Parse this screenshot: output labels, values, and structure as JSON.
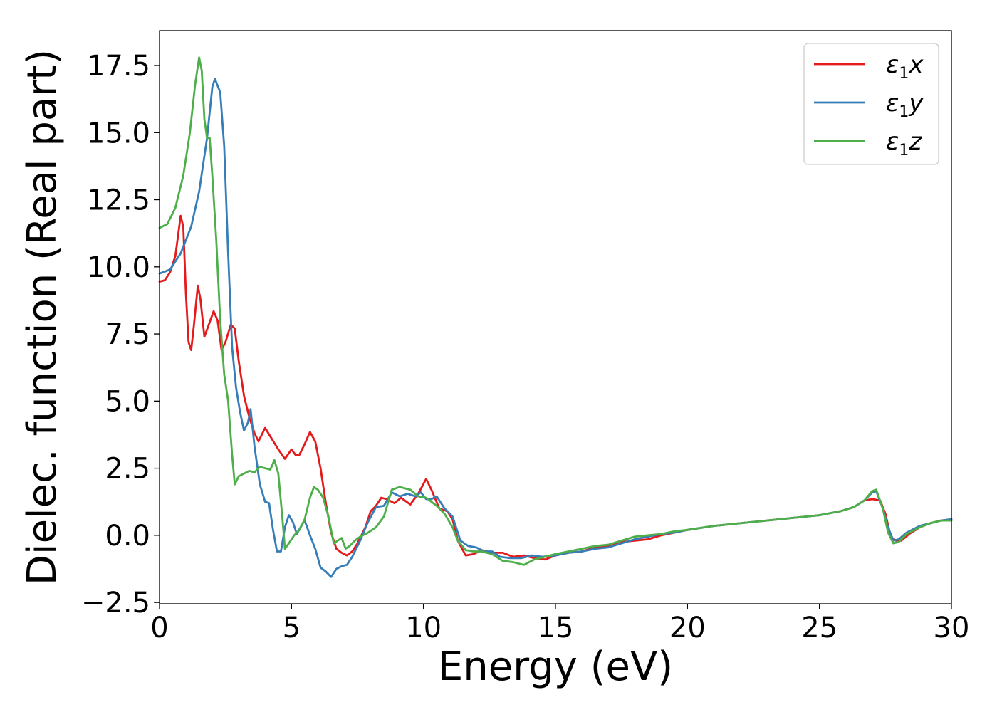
{
  "chart_data": {
    "type": "line",
    "xlabel": "Energy (eV)",
    "ylabel": "Dielec. function (Real part)",
    "xlim": [
      0,
      30
    ],
    "ylim": [
      -2.55,
      18.8
    ],
    "xticks": [
      0,
      5,
      10,
      15,
      20,
      25,
      30
    ],
    "xtick_labels": [
      "0",
      "5",
      "10",
      "15",
      "20",
      "25",
      "30"
    ],
    "yticks": [
      -2.5,
      0.0,
      2.5,
      5.0,
      7.5,
      10.0,
      12.5,
      15.0,
      17.5
    ],
    "ytick_labels": [
      "−2.5",
      "0.0",
      "2.5",
      "5.0",
      "7.5",
      "10.0",
      "12.5",
      "15.0",
      "17.5"
    ],
    "grid": false,
    "legend_position": "top-right",
    "series": [
      {
        "name": "ε₁x",
        "legend_base": "ε",
        "legend_sub": "1",
        "legend_tail": "x",
        "color": "#e41a1c",
        "points": [
          [
            0,
            9.45
          ],
          [
            0.2,
            9.5
          ],
          [
            0.4,
            9.8
          ],
          [
            0.6,
            10.4
          ],
          [
            0.8,
            11.9
          ],
          [
            0.9,
            11.5
          ],
          [
            1.0,
            9.0
          ],
          [
            1.1,
            7.2
          ],
          [
            1.2,
            6.9
          ],
          [
            1.3,
            7.8
          ],
          [
            1.45,
            9.3
          ],
          [
            1.55,
            8.8
          ],
          [
            1.7,
            7.4
          ],
          [
            1.85,
            7.8
          ],
          [
            2.05,
            8.35
          ],
          [
            2.2,
            8.0
          ],
          [
            2.35,
            6.9
          ],
          [
            2.5,
            7.2
          ],
          [
            2.7,
            7.85
          ],
          [
            2.85,
            7.7
          ],
          [
            3.0,
            6.5
          ],
          [
            3.2,
            5.2
          ],
          [
            3.4,
            4.4
          ],
          [
            3.6,
            3.8
          ],
          [
            3.75,
            3.5
          ],
          [
            4.0,
            4.0
          ],
          [
            4.25,
            3.6
          ],
          [
            4.5,
            3.2
          ],
          [
            4.75,
            2.85
          ],
          [
            5.0,
            3.2
          ],
          [
            5.15,
            3.0
          ],
          [
            5.3,
            3.0
          ],
          [
            5.5,
            3.4
          ],
          [
            5.7,
            3.85
          ],
          [
            5.9,
            3.5
          ],
          [
            6.1,
            2.5
          ],
          [
            6.3,
            1.2
          ],
          [
            6.5,
            0.1
          ],
          [
            6.7,
            -0.5
          ],
          [
            6.9,
            -0.65
          ],
          [
            7.1,
            -0.75
          ],
          [
            7.3,
            -0.6
          ],
          [
            7.5,
            -0.3
          ],
          [
            7.8,
            0.3
          ],
          [
            8.0,
            0.9
          ],
          [
            8.2,
            1.1
          ],
          [
            8.4,
            1.4
          ],
          [
            8.6,
            1.35
          ],
          [
            8.9,
            1.2
          ],
          [
            9.15,
            1.4
          ],
          [
            9.5,
            1.15
          ],
          [
            9.8,
            1.55
          ],
          [
            10.1,
            2.1
          ],
          [
            10.3,
            1.7
          ],
          [
            10.6,
            1.0
          ],
          [
            10.9,
            0.9
          ],
          [
            11.1,
            0.6
          ],
          [
            11.3,
            -0.2
          ],
          [
            11.6,
            -0.75
          ],
          [
            11.9,
            -0.7
          ],
          [
            12.2,
            -0.55
          ],
          [
            12.6,
            -0.65
          ],
          [
            13.0,
            -0.65
          ],
          [
            13.4,
            -0.8
          ],
          [
            13.8,
            -0.75
          ],
          [
            14.2,
            -0.85
          ],
          [
            14.6,
            -0.9
          ],
          [
            15.0,
            -0.75
          ],
          [
            15.5,
            -0.65
          ],
          [
            16.0,
            -0.6
          ],
          [
            16.5,
            -0.45
          ],
          [
            17.0,
            -0.4
          ],
          [
            17.5,
            -0.25
          ],
          [
            18.0,
            -0.2
          ],
          [
            18.5,
            -0.15
          ],
          [
            19.0,
            0.0
          ],
          [
            19.5,
            0.1
          ],
          [
            20.0,
            0.2
          ],
          [
            21.0,
            0.35
          ],
          [
            22.0,
            0.45
          ],
          [
            23.0,
            0.55
          ],
          [
            24.0,
            0.65
          ],
          [
            25.0,
            0.75
          ],
          [
            25.8,
            0.9
          ],
          [
            26.3,
            1.05
          ],
          [
            26.7,
            1.3
          ],
          [
            27.0,
            1.35
          ],
          [
            27.3,
            1.3
          ],
          [
            27.5,
            0.8
          ],
          [
            27.7,
            -0.05
          ],
          [
            27.9,
            -0.2
          ],
          [
            28.1,
            -0.2
          ],
          [
            28.4,
            0.05
          ],
          [
            28.8,
            0.3
          ],
          [
            29.2,
            0.45
          ],
          [
            29.6,
            0.55
          ],
          [
            30.0,
            0.6
          ]
        ]
      },
      {
        "name": "ε₁y",
        "legend_base": "ε",
        "legend_sub": "1",
        "legend_tail": "y",
        "color": "#377eb8",
        "points": [
          [
            0,
            9.75
          ],
          [
            0.4,
            9.9
          ],
          [
            0.8,
            10.5
          ],
          [
            1.2,
            11.5
          ],
          [
            1.5,
            12.8
          ],
          [
            1.8,
            14.8
          ],
          [
            2.0,
            16.7
          ],
          [
            2.1,
            17.0
          ],
          [
            2.3,
            16.5
          ],
          [
            2.45,
            14.5
          ],
          [
            2.6,
            10.5
          ],
          [
            2.75,
            7.0
          ],
          [
            2.9,
            5.5
          ],
          [
            3.05,
            4.6
          ],
          [
            3.2,
            3.9
          ],
          [
            3.35,
            4.2
          ],
          [
            3.45,
            4.7
          ],
          [
            3.6,
            3.3
          ],
          [
            3.8,
            1.9
          ],
          [
            4.0,
            1.25
          ],
          [
            4.15,
            1.2
          ],
          [
            4.3,
            0.2
          ],
          [
            4.45,
            -0.6
          ],
          [
            4.6,
            -0.6
          ],
          [
            4.75,
            0.3
          ],
          [
            4.9,
            0.75
          ],
          [
            5.05,
            0.5
          ],
          [
            5.2,
            0.05
          ],
          [
            5.4,
            0.4
          ],
          [
            5.5,
            0.55
          ],
          [
            5.7,
            0.0
          ],
          [
            5.9,
            -0.5
          ],
          [
            6.1,
            -1.2
          ],
          [
            6.3,
            -1.35
          ],
          [
            6.5,
            -1.55
          ],
          [
            6.7,
            -1.25
          ],
          [
            6.9,
            -1.15
          ],
          [
            7.1,
            -1.1
          ],
          [
            7.3,
            -0.8
          ],
          [
            7.6,
            -0.2
          ],
          [
            7.9,
            0.5
          ],
          [
            8.2,
            1.05
          ],
          [
            8.5,
            1.1
          ],
          [
            8.8,
            1.6
          ],
          [
            9.1,
            1.45
          ],
          [
            9.4,
            1.55
          ],
          [
            9.7,
            1.45
          ],
          [
            9.9,
            1.6
          ],
          [
            10.1,
            1.35
          ],
          [
            10.3,
            1.35
          ],
          [
            10.5,
            1.45
          ],
          [
            10.8,
            1.0
          ],
          [
            11.1,
            0.7
          ],
          [
            11.4,
            -0.2
          ],
          [
            11.7,
            -0.4
          ],
          [
            12.0,
            -0.45
          ],
          [
            12.3,
            -0.6
          ],
          [
            12.6,
            -0.6
          ],
          [
            12.9,
            -0.8
          ],
          [
            13.3,
            -0.85
          ],
          [
            13.7,
            -0.85
          ],
          [
            14.1,
            -0.75
          ],
          [
            14.5,
            -0.8
          ],
          [
            15.0,
            -0.75
          ],
          [
            15.5,
            -0.65
          ],
          [
            16.0,
            -0.6
          ],
          [
            16.5,
            -0.5
          ],
          [
            17.0,
            -0.45
          ],
          [
            17.5,
            -0.3
          ],
          [
            18.0,
            -0.15
          ],
          [
            18.5,
            -0.05
          ],
          [
            19.0,
            0.05
          ],
          [
            19.5,
            0.1
          ],
          [
            20.0,
            0.2
          ],
          [
            21.0,
            0.35
          ],
          [
            22.0,
            0.45
          ],
          [
            23.0,
            0.55
          ],
          [
            24.0,
            0.65
          ],
          [
            25.0,
            0.75
          ],
          [
            25.8,
            0.9
          ],
          [
            26.3,
            1.05
          ],
          [
            26.7,
            1.3
          ],
          [
            27.0,
            1.6
          ],
          [
            27.15,
            1.65
          ],
          [
            27.4,
            1.0
          ],
          [
            27.6,
            0.3
          ],
          [
            27.8,
            -0.2
          ],
          [
            28.0,
            -0.15
          ],
          [
            28.3,
            0.1
          ],
          [
            28.8,
            0.35
          ],
          [
            29.2,
            0.45
          ],
          [
            29.6,
            0.55
          ],
          [
            30.0,
            0.6
          ]
        ]
      },
      {
        "name": "ε₁z",
        "legend_base": "ε",
        "legend_sub": "1",
        "legend_tail": "z",
        "color": "#4daf4a",
        "points": [
          [
            0,
            11.45
          ],
          [
            0.3,
            11.6
          ],
          [
            0.6,
            12.2
          ],
          [
            0.9,
            13.4
          ],
          [
            1.15,
            15.0
          ],
          [
            1.35,
            16.8
          ],
          [
            1.5,
            17.8
          ],
          [
            1.6,
            17.3
          ],
          [
            1.7,
            15.5
          ],
          [
            1.8,
            14.8
          ],
          [
            1.9,
            14.8
          ],
          [
            2.0,
            13.4
          ],
          [
            2.15,
            11.0
          ],
          [
            2.3,
            8.0
          ],
          [
            2.45,
            6.0
          ],
          [
            2.6,
            5.0
          ],
          [
            2.75,
            3.0
          ],
          [
            2.85,
            1.9
          ],
          [
            3.0,
            2.2
          ],
          [
            3.2,
            2.3
          ],
          [
            3.4,
            2.4
          ],
          [
            3.6,
            2.35
          ],
          [
            3.8,
            2.55
          ],
          [
            4.0,
            2.5
          ],
          [
            4.2,
            2.45
          ],
          [
            4.35,
            2.8
          ],
          [
            4.5,
            2.3
          ],
          [
            4.65,
            0.7
          ],
          [
            4.75,
            -0.5
          ],
          [
            4.9,
            -0.3
          ],
          [
            5.1,
            0.0
          ],
          [
            5.3,
            0.2
          ],
          [
            5.5,
            0.6
          ],
          [
            5.7,
            1.4
          ],
          [
            5.85,
            1.8
          ],
          [
            6.0,
            1.7
          ],
          [
            6.2,
            1.4
          ],
          [
            6.4,
            0.7
          ],
          [
            6.6,
            -0.3
          ],
          [
            6.75,
            -0.2
          ],
          [
            6.9,
            -0.1
          ],
          [
            7.05,
            -0.5
          ],
          [
            7.2,
            -0.4
          ],
          [
            7.4,
            -0.2
          ],
          [
            7.6,
            -0.05
          ],
          [
            7.9,
            0.1
          ],
          [
            8.2,
            0.3
          ],
          [
            8.5,
            0.7
          ],
          [
            8.8,
            1.7
          ],
          [
            9.1,
            1.8
          ],
          [
            9.5,
            1.7
          ],
          [
            9.8,
            1.45
          ],
          [
            10.1,
            1.4
          ],
          [
            10.5,
            1.1
          ],
          [
            10.8,
            0.8
          ],
          [
            11.1,
            0.3
          ],
          [
            11.3,
            -0.2
          ],
          [
            11.6,
            -0.55
          ],
          [
            11.9,
            -0.6
          ],
          [
            12.2,
            -0.6
          ],
          [
            12.6,
            -0.7
          ],
          [
            13.0,
            -0.95
          ],
          [
            13.4,
            -1.0
          ],
          [
            13.8,
            -1.1
          ],
          [
            14.2,
            -0.9
          ],
          [
            14.6,
            -0.8
          ],
          [
            15.0,
            -0.7
          ],
          [
            15.5,
            -0.6
          ],
          [
            16.0,
            -0.5
          ],
          [
            16.5,
            -0.4
          ],
          [
            17.0,
            -0.35
          ],
          [
            17.5,
            -0.2
          ],
          [
            18.0,
            -0.05
          ],
          [
            18.5,
            0.0
          ],
          [
            19.0,
            0.05
          ],
          [
            19.5,
            0.15
          ],
          [
            20.0,
            0.2
          ],
          [
            21.0,
            0.35
          ],
          [
            22.0,
            0.45
          ],
          [
            23.0,
            0.55
          ],
          [
            24.0,
            0.65
          ],
          [
            25.0,
            0.75
          ],
          [
            25.8,
            0.9
          ],
          [
            26.3,
            1.05
          ],
          [
            26.7,
            1.3
          ],
          [
            27.0,
            1.65
          ],
          [
            27.15,
            1.7
          ],
          [
            27.4,
            1.0
          ],
          [
            27.6,
            0.1
          ],
          [
            27.8,
            -0.3
          ],
          [
            28.0,
            -0.25
          ],
          [
            28.3,
            0.05
          ],
          [
            28.8,
            0.3
          ],
          [
            29.2,
            0.45
          ],
          [
            29.6,
            0.55
          ],
          [
            30.0,
            0.55
          ]
        ]
      }
    ]
  }
}
